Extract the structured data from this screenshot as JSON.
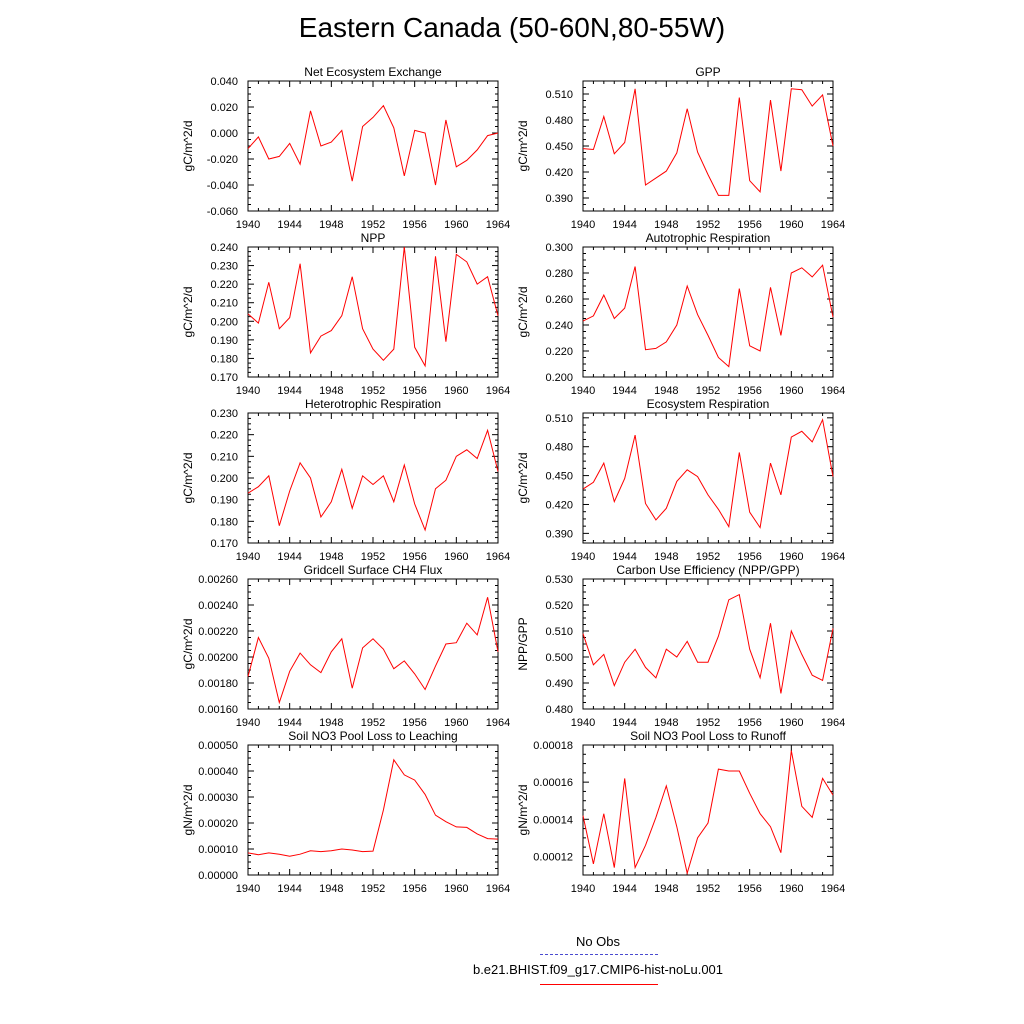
{
  "title": "Eastern Canada (50-60N,80-55W)",
  "colors": {
    "series": "#ff0000",
    "obs": "#4a4ad0",
    "axis": "#000000"
  },
  "legend": {
    "obs_label": "No Obs",
    "model_label": "b.e21.BHIST.f09_g17.CMIP6-hist-noLu.001"
  },
  "chart_data": [
    {
      "type": "line",
      "title": "Net Ecosystem Exchange",
      "ylabel": "gC/m^2/d",
      "xlim": [
        1940,
        1964
      ],
      "ylim": [
        -0.06,
        0.04
      ],
      "xticks": [
        "1940",
        "1944",
        "1948",
        "1952",
        "1956",
        "1960",
        "1964"
      ],
      "yticks": [
        "-0.060",
        "-0.040",
        "-0.020",
        "0.000",
        "0.020",
        "0.040"
      ],
      "x": [
        1940,
        1941,
        1942,
        1943,
        1944,
        1945,
        1946,
        1947,
        1948,
        1949,
        1950,
        1951,
        1952,
        1953,
        1954,
        1955,
        1956,
        1957,
        1958,
        1959,
        1960,
        1961,
        1962,
        1963,
        1964
      ],
      "values": [
        -0.012,
        -0.003,
        -0.02,
        -0.018,
        -0.008,
        -0.024,
        0.017,
        -0.01,
        -0.007,
        0.002,
        -0.037,
        0.005,
        0.012,
        0.021,
        0.004,
        -0.033,
        0.002,
        0.0,
        -0.04,
        0.01,
        -0.026,
        -0.021,
        -0.013,
        -0.002,
        0.0
      ]
    },
    {
      "type": "line",
      "title": "GPP",
      "ylabel": "gC/m^2/d",
      "xlim": [
        1940,
        1964
      ],
      "ylim": [
        0.375,
        0.525
      ],
      "xticks": [
        "1940",
        "1944",
        "1948",
        "1952",
        "1956",
        "1960",
        "1964"
      ],
      "yticks": [
        "0.390",
        "0.420",
        "0.450",
        "0.480",
        "0.510"
      ],
      "x": [
        1940,
        1941,
        1942,
        1943,
        1944,
        1945,
        1946,
        1947,
        1948,
        1949,
        1950,
        1951,
        1952,
        1953,
        1954,
        1955,
        1956,
        1957,
        1958,
        1959,
        1960,
        1961,
        1962,
        1963,
        1964
      ],
      "values": [
        0.447,
        0.446,
        0.484,
        0.441,
        0.454,
        0.516,
        0.405,
        0.413,
        0.421,
        0.442,
        0.493,
        0.443,
        0.417,
        0.393,
        0.393,
        0.506,
        0.41,
        0.397,
        0.503,
        0.421,
        0.516,
        0.515,
        0.496,
        0.509,
        0.45
      ]
    },
    {
      "type": "line",
      "title": "NPP",
      "ylabel": "gC/m^2/d",
      "xlim": [
        1940,
        1964
      ],
      "ylim": [
        0.17,
        0.24
      ],
      "xticks": [
        "1940",
        "1944",
        "1948",
        "1952",
        "1956",
        "1960",
        "1964"
      ],
      "yticks": [
        "0.170",
        "0.180",
        "0.190",
        "0.200",
        "0.210",
        "0.220",
        "0.230",
        "0.240"
      ],
      "x": [
        1940,
        1941,
        1942,
        1943,
        1944,
        1945,
        1946,
        1947,
        1948,
        1949,
        1950,
        1951,
        1952,
        1953,
        1954,
        1955,
        1956,
        1957,
        1958,
        1959,
        1960,
        1961,
        1962,
        1963,
        1964
      ],
      "values": [
        0.204,
        0.199,
        0.221,
        0.196,
        0.202,
        0.231,
        0.183,
        0.192,
        0.195,
        0.203,
        0.224,
        0.196,
        0.185,
        0.179,
        0.185,
        0.24,
        0.186,
        0.176,
        0.235,
        0.189,
        0.236,
        0.232,
        0.22,
        0.224,
        0.203
      ]
    },
    {
      "type": "line",
      "title": "Autotrophic Respiration",
      "ylabel": "gC/m^2/d",
      "xlim": [
        1940,
        1964
      ],
      "ylim": [
        0.2,
        0.3
      ],
      "xticks": [
        "1940",
        "1944",
        "1948",
        "1952",
        "1956",
        "1960",
        "1964"
      ],
      "yticks": [
        "0.200",
        "0.220",
        "0.240",
        "0.260",
        "0.280",
        "0.300"
      ],
      "x": [
        1940,
        1941,
        1942,
        1943,
        1944,
        1945,
        1946,
        1947,
        1948,
        1949,
        1950,
        1951,
        1952,
        1953,
        1954,
        1955,
        1956,
        1957,
        1958,
        1959,
        1960,
        1961,
        1962,
        1963,
        1964
      ],
      "values": [
        0.243,
        0.247,
        0.263,
        0.245,
        0.253,
        0.285,
        0.221,
        0.222,
        0.227,
        0.24,
        0.27,
        0.248,
        0.232,
        0.215,
        0.208,
        0.268,
        0.224,
        0.22,
        0.269,
        0.232,
        0.28,
        0.284,
        0.277,
        0.286,
        0.246
      ]
    },
    {
      "type": "line",
      "title": "Heterotrophic Respiration",
      "ylabel": "gC/m^2/d",
      "xlim": [
        1940,
        1964
      ],
      "ylim": [
        0.17,
        0.23
      ],
      "xticks": [
        "1940",
        "1944",
        "1948",
        "1952",
        "1956",
        "1960",
        "1964"
      ],
      "yticks": [
        "0.170",
        "0.180",
        "0.190",
        "0.200",
        "0.210",
        "0.220",
        "0.230"
      ],
      "x": [
        1940,
        1941,
        1942,
        1943,
        1944,
        1945,
        1946,
        1947,
        1948,
        1949,
        1950,
        1951,
        1952,
        1953,
        1954,
        1955,
        1956,
        1957,
        1958,
        1959,
        1960,
        1961,
        1962,
        1963,
        1964
      ],
      "values": [
        0.193,
        0.196,
        0.201,
        0.178,
        0.194,
        0.207,
        0.2,
        0.182,
        0.189,
        0.204,
        0.186,
        0.201,
        0.197,
        0.201,
        0.189,
        0.206,
        0.188,
        0.176,
        0.195,
        0.199,
        0.21,
        0.213,
        0.209,
        0.222,
        0.203
      ]
    },
    {
      "type": "line",
      "title": "Ecosystem Respiration",
      "ylabel": "gC/m^2/d",
      "xlim": [
        1940,
        1964
      ],
      "ylim": [
        0.38,
        0.515
      ],
      "xticks": [
        "1940",
        "1944",
        "1948",
        "1952",
        "1956",
        "1960",
        "1964"
      ],
      "yticks": [
        "0.390",
        "0.420",
        "0.450",
        "0.480",
        "0.510"
      ],
      "x": [
        1940,
        1941,
        1942,
        1943,
        1944,
        1945,
        1946,
        1947,
        1948,
        1949,
        1950,
        1951,
        1952,
        1953,
        1954,
        1955,
        1956,
        1957,
        1958,
        1959,
        1960,
        1961,
        1962,
        1963,
        1964
      ],
      "values": [
        0.436,
        0.443,
        0.463,
        0.423,
        0.447,
        0.492,
        0.421,
        0.404,
        0.416,
        0.444,
        0.456,
        0.449,
        0.43,
        0.415,
        0.397,
        0.474,
        0.412,
        0.396,
        0.463,
        0.43,
        0.49,
        0.496,
        0.485,
        0.508,
        0.449
      ]
    },
    {
      "type": "line",
      "title": "Gridcell Surface CH4 Flux",
      "ylabel": "gC/m^2/d",
      "xlim": [
        1940,
        1964
      ],
      "ylim": [
        0.0016,
        0.0026
      ],
      "xticks": [
        "1940",
        "1944",
        "1948",
        "1952",
        "1956",
        "1960",
        "1964"
      ],
      "yticks": [
        "0.00160",
        "0.00180",
        "0.00200",
        "0.00220",
        "0.00240",
        "0.00260"
      ],
      "x": [
        1940,
        1941,
        1942,
        1943,
        1944,
        1945,
        1946,
        1947,
        1948,
        1949,
        1950,
        1951,
        1952,
        1953,
        1954,
        1955,
        1956,
        1957,
        1958,
        1959,
        1960,
        1961,
        1962,
        1963,
        1964
      ],
      "values": [
        0.00185,
        0.00215,
        0.00199,
        0.00165,
        0.00189,
        0.00203,
        0.00194,
        0.00188,
        0.00204,
        0.00214,
        0.00176,
        0.00207,
        0.00214,
        0.00206,
        0.00191,
        0.00197,
        0.00187,
        0.00175,
        0.00193,
        0.0021,
        0.00211,
        0.00226,
        0.00217,
        0.00246,
        0.00204
      ]
    },
    {
      "type": "line",
      "title": "Carbon Use Efficiency (NPP/GPP)",
      "ylabel": "NPP/GPP",
      "xlim": [
        1940,
        1964
      ],
      "ylim": [
        0.48,
        0.53
      ],
      "xticks": [
        "1940",
        "1944",
        "1948",
        "1952",
        "1956",
        "1960",
        "1964"
      ],
      "yticks": [
        "0.480",
        "0.490",
        "0.500",
        "0.510",
        "0.520",
        "0.530"
      ],
      "x": [
        1940,
        1941,
        1942,
        1943,
        1944,
        1945,
        1946,
        1947,
        1948,
        1949,
        1950,
        1951,
        1952,
        1953,
        1954,
        1955,
        1956,
        1957,
        1958,
        1959,
        1960,
        1961,
        1962,
        1963,
        1964
      ],
      "values": [
        0.509,
        0.497,
        0.501,
        0.489,
        0.498,
        0.503,
        0.496,
        0.492,
        0.503,
        0.5,
        0.506,
        0.498,
        0.498,
        0.508,
        0.522,
        0.524,
        0.503,
        0.492,
        0.513,
        0.486,
        0.51,
        0.501,
        0.493,
        0.491,
        0.511
      ]
    },
    {
      "type": "line",
      "title": "Soil NO3 Pool Loss to Leaching",
      "ylabel": "gN/m^2/d",
      "xlim": [
        1940,
        1964
      ],
      "ylim": [
        0.0,
        0.0005
      ],
      "xticks": [
        "1940",
        "1944",
        "1948",
        "1952",
        "1956",
        "1960",
        "1964"
      ],
      "yticks": [
        "0.00000",
        "0.00010",
        "0.00020",
        "0.00030",
        "0.00040",
        "0.00050"
      ],
      "x": [
        1940,
        1941,
        1942,
        1943,
        1944,
        1945,
        1946,
        1947,
        1948,
        1949,
        1950,
        1951,
        1952,
        1953,
        1954,
        1955,
        1956,
        1957,
        1958,
        1959,
        1960,
        1961,
        1962,
        1963,
        1964
      ],
      "values": [
        8.5e-05,
        7.8e-05,
        8.5e-05,
        8e-05,
        7.2e-05,
        8e-05,
        9.3e-05,
        9e-05,
        9.3e-05,
        0.0001,
        9.6e-05,
        9e-05,
        9.2e-05,
        0.00025,
        0.000443,
        0.000385,
        0.000365,
        0.00031,
        0.00023,
        0.000205,
        0.000185,
        0.000183,
        0.000158,
        0.00014,
        0.000138
      ]
    },
    {
      "type": "line",
      "title": "Soil NO3 Pool Loss to Runoff",
      "ylabel": "gN/m^2/d",
      "xlim": [
        1940,
        1964
      ],
      "ylim": [
        0.00011,
        0.00018
      ],
      "xticks": [
        "1940",
        "1944",
        "1948",
        "1952",
        "1956",
        "1960",
        "1964"
      ],
      "yticks": [
        "0.00012",
        "0.00014",
        "0.00016",
        "0.00018"
      ],
      "x": [
        1940,
        1941,
        1942,
        1943,
        1944,
        1945,
        1946,
        1947,
        1948,
        1949,
        1950,
        1951,
        1952,
        1953,
        1954,
        1955,
        1956,
        1957,
        1958,
        1959,
        1960,
        1961,
        1962,
        1963,
        1964
      ],
      "values": [
        0.000142,
        0.000116,
        0.000143,
        0.000114,
        0.000162,
        0.000114,
        0.000126,
        0.000141,
        0.000158,
        0.000136,
        0.000111,
        0.00013,
        0.000138,
        0.000167,
        0.000166,
        0.000166,
        0.000154,
        0.000143,
        0.000136,
        0.000122,
        0.000177,
        0.000147,
        0.000141,
        0.000162,
        0.000153
      ]
    }
  ]
}
